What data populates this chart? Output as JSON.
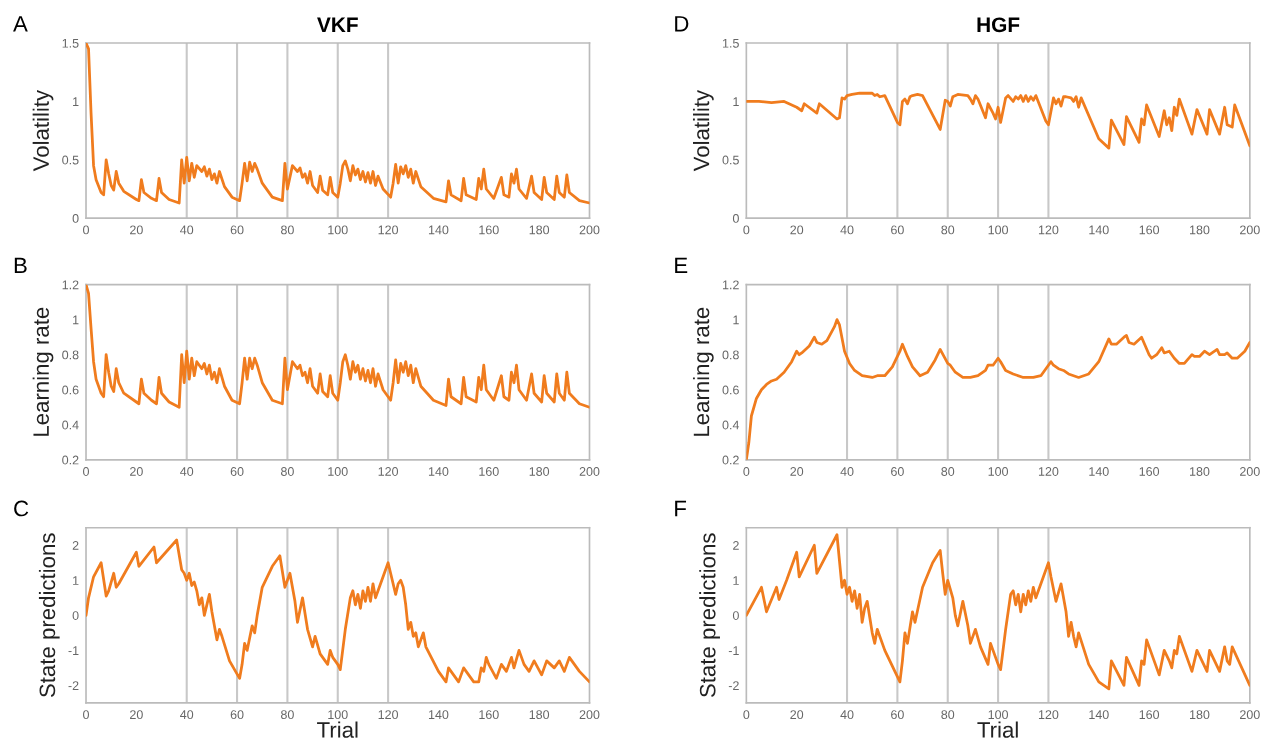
{
  "chart_data": [
    {
      "type": "line",
      "title": "VKF",
      "ylabel": "Volatility",
      "annotations": [
        "A"
      ],
      "xlim": [
        0,
        200
      ],
      "xticks": [
        0,
        20,
        40,
        60,
        80,
        100,
        120,
        140,
        160,
        180,
        200
      ],
      "ylim": [
        0,
        1.5
      ],
      "yticks": [
        0,
        0.5,
        1,
        1.5
      ],
      "ref_lines": [
        {
          "axis": "x",
          "value": 40,
          "color": "#c8c8c8"
        },
        {
          "axis": "x",
          "value": 60,
          "color": "#c8c8c8"
        },
        {
          "axis": "x",
          "value": 80,
          "color": "#c8c8c8"
        },
        {
          "axis": "x",
          "value": 100,
          "color": "#c8c8c8"
        },
        {
          "axis": "x",
          "value": 120,
          "color": "#c8c8c8"
        }
      ],
      "x": [
        0,
        1,
        2,
        3,
        4,
        6,
        7,
        8,
        9,
        10,
        11,
        12,
        13,
        15,
        20,
        21,
        22,
        23,
        26,
        28,
        29,
        30,
        33,
        37,
        38,
        39,
        40,
        41,
        42,
        43,
        44,
        46,
        47,
        48,
        49,
        50,
        51,
        52,
        53,
        55,
        58,
        61,
        62,
        63,
        64,
        65,
        66,
        67,
        68,
        70,
        74,
        78,
        79,
        80,
        82,
        84,
        85,
        86,
        87,
        88,
        89,
        90,
        92,
        93,
        94,
        96,
        97,
        98,
        100,
        101,
        102,
        103,
        104,
        105,
        106,
        107,
        108,
        109,
        110,
        111,
        112,
        113,
        114,
        115,
        116,
        118,
        121,
        122,
        123,
        124,
        125,
        126,
        127,
        128,
        129,
        130,
        131,
        133,
        138,
        143,
        144,
        145,
        149,
        150,
        151,
        155,
        156,
        157,
        158,
        159,
        162,
        165,
        166,
        168,
        169,
        170,
        171,
        172,
        175,
        177,
        178,
        181,
        182,
        183,
        186,
        187,
        188,
        190,
        191,
        192,
        196,
        200
      ],
      "series": [
        {
          "color": "#f07c1e",
          "values": [
            1.5,
            1.45,
            0.9,
            0.45,
            0.33,
            0.22,
            0.2,
            0.5,
            0.38,
            0.28,
            0.24,
            0.4,
            0.3,
            0.23,
            0.16,
            0.15,
            0.33,
            0.22,
            0.17,
            0.15,
            0.34,
            0.22,
            0.16,
            0.13,
            0.5,
            0.3,
            0.52,
            0.32,
            0.47,
            0.35,
            0.45,
            0.4,
            0.44,
            0.36,
            0.42,
            0.33,
            0.38,
            0.3,
            0.4,
            0.27,
            0.18,
            0.15,
            0.3,
            0.47,
            0.32,
            0.48,
            0.4,
            0.47,
            0.42,
            0.3,
            0.18,
            0.15,
            0.47,
            0.25,
            0.45,
            0.4,
            0.43,
            0.35,
            0.38,
            0.3,
            0.4,
            0.28,
            0.22,
            0.36,
            0.24,
            0.2,
            0.35,
            0.22,
            0.18,
            0.3,
            0.45,
            0.49,
            0.42,
            0.32,
            0.45,
            0.37,
            0.42,
            0.33,
            0.4,
            0.31,
            0.39,
            0.3,
            0.4,
            0.28,
            0.36,
            0.25,
            0.18,
            0.3,
            0.46,
            0.3,
            0.44,
            0.38,
            0.45,
            0.35,
            0.42,
            0.3,
            0.4,
            0.27,
            0.17,
            0.14,
            0.32,
            0.2,
            0.15,
            0.34,
            0.2,
            0.16,
            0.34,
            0.25,
            0.42,
            0.25,
            0.17,
            0.35,
            0.2,
            0.18,
            0.38,
            0.3,
            0.42,
            0.25,
            0.17,
            0.36,
            0.22,
            0.16,
            0.35,
            0.22,
            0.16,
            0.36,
            0.22,
            0.18,
            0.37,
            0.22,
            0.15,
            0.13
          ]
        }
      ]
    },
    {
      "type": "line",
      "title": "HGF",
      "ylabel": "Volatility",
      "annotations": [
        "D"
      ],
      "xlim": [
        0,
        200
      ],
      "xticks": [
        0,
        20,
        40,
        60,
        80,
        100,
        120,
        140,
        160,
        180,
        200
      ],
      "ylim": [
        0,
        1.5
      ],
      "yticks": [
        0,
        0.5,
        1,
        1.5
      ],
      "ref_lines": [
        {
          "axis": "x",
          "value": 40,
          "color": "#c8c8c8"
        },
        {
          "axis": "x",
          "value": 60,
          "color": "#c8c8c8"
        },
        {
          "axis": "x",
          "value": 80,
          "color": "#c8c8c8"
        },
        {
          "axis": "x",
          "value": 100,
          "color": "#c8c8c8"
        },
        {
          "axis": "x",
          "value": 120,
          "color": "#c8c8c8"
        }
      ],
      "x": [
        0,
        5,
        10,
        15,
        20,
        22,
        23,
        28,
        29,
        36,
        37,
        38,
        39,
        40,
        42,
        45,
        50,
        51,
        52,
        53,
        55,
        60,
        61,
        62,
        63,
        64,
        65,
        66,
        68,
        70,
        77,
        79,
        80,
        81,
        82,
        84,
        88,
        89,
        90,
        91,
        92,
        95,
        96,
        98,
        99,
        100,
        101,
        103,
        104,
        106,
        107,
        108,
        109,
        110,
        111,
        112,
        113,
        114,
        115,
        119,
        120,
        122,
        123,
        124,
        125,
        126,
        127,
        129,
        130,
        131,
        132,
        133,
        140,
        144,
        145,
        150,
        151,
        156,
        157,
        158,
        159,
        164,
        166,
        167,
        168,
        169,
        170,
        171,
        172,
        177,
        179,
        183,
        184,
        188,
        190,
        191,
        193,
        194,
        200
      ],
      "series": [
        {
          "color": "#f07c1e",
          "values": [
            1.0,
            1.0,
            0.99,
            1.0,
            0.95,
            0.92,
            0.98,
            0.9,
            0.98,
            0.85,
            0.86,
            1.03,
            1.02,
            1.05,
            1.06,
            1.07,
            1.07,
            1.05,
            1.06,
            1.04,
            1.05,
            0.82,
            0.8,
            1.0,
            1.02,
            0.98,
            1.04,
            1.05,
            1.06,
            1.05,
            0.76,
            1.01,
            1.0,
            0.96,
            1.04,
            1.06,
            1.05,
            1.02,
            0.98,
            1.05,
            1.02,
            0.86,
            0.98,
            0.9,
            0.85,
            0.95,
            0.82,
            1.03,
            1.05,
            1.0,
            1.04,
            1.02,
            1.05,
            1.0,
            1.05,
            1.0,
            1.04,
            1.01,
            1.05,
            0.83,
            0.8,
            1.03,
            0.98,
            1.02,
            0.96,
            1.04,
            1.04,
            1.03,
            1.0,
            1.04,
            0.95,
            1.03,
            0.68,
            0.6,
            0.84,
            0.63,
            0.87,
            0.65,
            0.85,
            0.8,
            0.97,
            0.7,
            0.92,
            0.8,
            0.86,
            0.75,
            0.95,
            0.88,
            1.02,
            0.72,
            0.93,
            0.72,
            0.93,
            0.72,
            0.95,
            0.8,
            0.78,
            0.97,
            0.62
          ]
        }
      ]
    },
    {
      "type": "line",
      "ylabel": "Learning rate",
      "annotations": [
        "B"
      ],
      "xlim": [
        0,
        200
      ],
      "xticks": [
        0,
        20,
        40,
        60,
        80,
        100,
        120,
        140,
        160,
        180,
        200
      ],
      "ylim": [
        0.2,
        1.2
      ],
      "yticks": [
        0.2,
        0.4,
        0.6,
        0.8,
        1,
        1.2
      ],
      "ref_lines": [
        {
          "axis": "x",
          "value": 40,
          "color": "#c8c8c8"
        },
        {
          "axis": "x",
          "value": 60,
          "color": "#c8c8c8"
        },
        {
          "axis": "x",
          "value": 80,
          "color": "#c8c8c8"
        },
        {
          "axis": "x",
          "value": 100,
          "color": "#c8c8c8"
        },
        {
          "axis": "x",
          "value": 120,
          "color": "#c8c8c8"
        }
      ],
      "x": [
        0,
        1,
        2,
        3,
        4,
        6,
        7,
        8,
        9,
        10,
        11,
        12,
        13,
        15,
        20,
        21,
        22,
        23,
        26,
        28,
        29,
        30,
        33,
        37,
        38,
        39,
        40,
        41,
        42,
        43,
        44,
        46,
        47,
        48,
        49,
        50,
        51,
        52,
        53,
        55,
        58,
        61,
        62,
        63,
        64,
        65,
        66,
        67,
        68,
        70,
        74,
        78,
        79,
        80,
        82,
        84,
        85,
        86,
        87,
        88,
        89,
        90,
        92,
        93,
        94,
        96,
        97,
        98,
        100,
        101,
        102,
        103,
        104,
        105,
        106,
        107,
        108,
        109,
        110,
        111,
        112,
        113,
        114,
        115,
        116,
        118,
        121,
        122,
        123,
        124,
        125,
        126,
        127,
        128,
        129,
        130,
        131,
        133,
        138,
        143,
        144,
        145,
        149,
        150,
        151,
        155,
        156,
        157,
        158,
        159,
        162,
        165,
        166,
        168,
        169,
        170,
        171,
        172,
        175,
        177,
        178,
        181,
        182,
        183,
        186,
        187,
        188,
        190,
        191,
        192,
        196,
        200
      ],
      "series": [
        {
          "color": "#f07c1e",
          "values": [
            1.2,
            1.15,
            0.95,
            0.76,
            0.66,
            0.58,
            0.56,
            0.8,
            0.7,
            0.62,
            0.59,
            0.72,
            0.64,
            0.58,
            0.53,
            0.52,
            0.66,
            0.58,
            0.54,
            0.52,
            0.67,
            0.58,
            0.53,
            0.5,
            0.8,
            0.64,
            0.82,
            0.66,
            0.78,
            0.68,
            0.76,
            0.72,
            0.75,
            0.69,
            0.74,
            0.66,
            0.7,
            0.64,
            0.72,
            0.62,
            0.54,
            0.52,
            0.64,
            0.78,
            0.66,
            0.78,
            0.72,
            0.78,
            0.74,
            0.64,
            0.54,
            0.52,
            0.78,
            0.6,
            0.76,
            0.72,
            0.74,
            0.68,
            0.7,
            0.64,
            0.72,
            0.62,
            0.58,
            0.69,
            0.59,
            0.56,
            0.68,
            0.58,
            0.54,
            0.64,
            0.76,
            0.8,
            0.74,
            0.66,
            0.76,
            0.7,
            0.74,
            0.66,
            0.72,
            0.65,
            0.71,
            0.64,
            0.72,
            0.62,
            0.69,
            0.6,
            0.54,
            0.64,
            0.77,
            0.64,
            0.75,
            0.7,
            0.76,
            0.68,
            0.74,
            0.64,
            0.72,
            0.62,
            0.54,
            0.51,
            0.66,
            0.56,
            0.52,
            0.67,
            0.56,
            0.53,
            0.67,
            0.6,
            0.74,
            0.6,
            0.54,
            0.68,
            0.56,
            0.54,
            0.7,
            0.64,
            0.74,
            0.6,
            0.54,
            0.69,
            0.58,
            0.53,
            0.68,
            0.58,
            0.53,
            0.69,
            0.58,
            0.54,
            0.7,
            0.58,
            0.52,
            0.5
          ]
        }
      ]
    },
    {
      "type": "line",
      "ylabel": "Learning rate",
      "annotations": [
        "E"
      ],
      "xlim": [
        0,
        200
      ],
      "xticks": [
        0,
        20,
        40,
        60,
        80,
        100,
        120,
        140,
        160,
        180,
        200
      ],
      "ylim": [
        0.2,
        1.2
      ],
      "yticks": [
        0.2,
        0.4,
        0.6,
        0.8,
        1,
        1.2
      ],
      "ref_lines": [
        {
          "axis": "x",
          "value": 40,
          "color": "#c8c8c8"
        },
        {
          "axis": "x",
          "value": 60,
          "color": "#c8c8c8"
        },
        {
          "axis": "x",
          "value": 80,
          "color": "#c8c8c8"
        },
        {
          "axis": "x",
          "value": 100,
          "color": "#c8c8c8"
        },
        {
          "axis": "x",
          "value": 120,
          "color": "#c8c8c8"
        }
      ],
      "x": [
        0,
        1,
        2,
        4,
        6,
        8,
        10,
        12,
        15,
        18,
        20,
        21,
        22,
        25,
        27,
        28,
        30,
        32,
        35,
        36,
        37,
        39,
        41,
        43,
        46,
        50,
        52,
        55,
        58,
        61,
        62,
        64,
        66,
        69,
        72,
        75,
        77,
        80,
        81,
        83,
        86,
        89,
        92,
        95,
        96,
        98,
        100,
        101,
        103,
        106,
        110,
        114,
        117,
        119,
        121,
        122,
        124,
        126,
        128,
        132,
        136,
        140,
        144,
        145,
        147,
        150,
        151,
        152,
        154,
        157,
        160,
        161,
        163,
        165,
        166,
        168,
        170,
        172,
        174,
        177,
        178,
        180,
        182,
        184,
        187,
        188,
        190,
        191,
        193,
        195,
        198,
        200
      ],
      "series": [
        {
          "color": "#f07c1e",
          "values": [
            0.2,
            0.3,
            0.45,
            0.55,
            0.6,
            0.63,
            0.65,
            0.66,
            0.7,
            0.76,
            0.82,
            0.8,
            0.81,
            0.85,
            0.9,
            0.87,
            0.86,
            0.88,
            0.96,
            1.0,
            0.97,
            0.82,
            0.75,
            0.71,
            0.68,
            0.67,
            0.68,
            0.68,
            0.73,
            0.82,
            0.86,
            0.79,
            0.73,
            0.68,
            0.7,
            0.77,
            0.83,
            0.75,
            0.74,
            0.7,
            0.67,
            0.67,
            0.68,
            0.71,
            0.74,
            0.74,
            0.78,
            0.76,
            0.71,
            0.69,
            0.67,
            0.67,
            0.68,
            0.72,
            0.76,
            0.74,
            0.72,
            0.71,
            0.69,
            0.67,
            0.69,
            0.76,
            0.89,
            0.86,
            0.86,
            0.9,
            0.91,
            0.87,
            0.86,
            0.9,
            0.8,
            0.78,
            0.8,
            0.84,
            0.81,
            0.82,
            0.78,
            0.75,
            0.75,
            0.8,
            0.79,
            0.79,
            0.82,
            0.8,
            0.83,
            0.8,
            0.8,
            0.81,
            0.78,
            0.78,
            0.82,
            0.87
          ]
        }
      ]
    },
    {
      "type": "line",
      "xlabel": "Trial",
      "ylabel": "State predictions",
      "annotations": [
        "C"
      ],
      "xlim": [
        0,
        200
      ],
      "xticks": [
        0,
        20,
        40,
        60,
        80,
        100,
        120,
        140,
        160,
        180,
        200
      ],
      "ylim": [
        -2.5,
        2.5
      ],
      "yticks": [
        -2,
        -1,
        0,
        1,
        2
      ],
      "ref_lines": [
        {
          "axis": "x",
          "value": 40,
          "color": "#c8c8c8"
        },
        {
          "axis": "x",
          "value": 60,
          "color": "#c8c8c8"
        },
        {
          "axis": "x",
          "value": 80,
          "color": "#c8c8c8"
        },
        {
          "axis": "x",
          "value": 100,
          "color": "#c8c8c8"
        },
        {
          "axis": "x",
          "value": 120,
          "color": "#c8c8c8"
        }
      ],
      "x": [
        0,
        1,
        3,
        6,
        8,
        9,
        11,
        12,
        13,
        20,
        21,
        27,
        28,
        36,
        38,
        39,
        40,
        41,
        42,
        43,
        44,
        45,
        46,
        47,
        48,
        49,
        50,
        52,
        53,
        54,
        57,
        61,
        62,
        63,
        64,
        66,
        67,
        68,
        70,
        74,
        77,
        79,
        80,
        81,
        83,
        84,
        86,
        88,
        90,
        91,
        93,
        96,
        97,
        98,
        100,
        101,
        103,
        105,
        106,
        107,
        108,
        109,
        110,
        111,
        112,
        113,
        114,
        115,
        118,
        120,
        121,
        123,
        124,
        125,
        126,
        127,
        128,
        129,
        130,
        131,
        132,
        134,
        135,
        140,
        143,
        144,
        148,
        150,
        154,
        156,
        157,
        158,
        159,
        160,
        163,
        165,
        167,
        169,
        170,
        172,
        174,
        176,
        178,
        181,
        183,
        186,
        188,
        190,
        192,
        196,
        200
      ],
      "series": [
        {
          "color": "#f07c1e",
          "values": [
            0,
            0.5,
            1.1,
            1.5,
            0.55,
            0.7,
            1.2,
            0.8,
            0.9,
            1.8,
            1.4,
            1.95,
            1.5,
            2.15,
            1.3,
            1.2,
            1.0,
            1.2,
            0.85,
            0.95,
            0.7,
            0.3,
            0.5,
            0,
            0.3,
            0.6,
            0.1,
            -0.7,
            -0.4,
            -0.6,
            -1.3,
            -1.8,
            -1.4,
            -0.8,
            -1.0,
            -0.3,
            -0.5,
            0,
            0.8,
            1.4,
            1.7,
            0.8,
            1.0,
            1.2,
            0.4,
            -0.2,
            0.5,
            -0.4,
            -0.9,
            -0.6,
            -1.1,
            -1.4,
            -1.0,
            -1.2,
            -1.4,
            -1.55,
            -0.4,
            0.5,
            0.7,
            0.3,
            0.6,
            0.2,
            0.7,
            0.4,
            0.8,
            0.4,
            0.9,
            0.5,
            1.1,
            1.5,
            1.2,
            0.6,
            0.9,
            1.0,
            0.8,
            0.3,
            -0.4,
            -0.2,
            -0.6,
            -0.5,
            -0.9,
            -0.5,
            -0.9,
            -1.6,
            -1.9,
            -1.5,
            -1.9,
            -1.5,
            -1.9,
            -1.9,
            -1.5,
            -1.6,
            -1.2,
            -1.4,
            -1.8,
            -1.4,
            -1.6,
            -1.2,
            -1.5,
            -1.0,
            -1.4,
            -1.6,
            -1.3,
            -1.7,
            -1.3,
            -1.5,
            -1.3,
            -1.6,
            -1.2,
            -1.6,
            -1.9
          ]
        }
      ]
    },
    {
      "type": "line",
      "xlabel": "Trial",
      "ylabel": "State predictions",
      "annotations": [
        "F"
      ],
      "xlim": [
        0,
        200
      ],
      "xticks": [
        0,
        20,
        40,
        60,
        80,
        100,
        120,
        140,
        160,
        180,
        200
      ],
      "ylim": [
        -2.5,
        2.5
      ],
      "yticks": [
        -2,
        -1,
        0,
        1,
        2
      ],
      "ref_lines": [
        {
          "axis": "x",
          "value": 40,
          "color": "#c8c8c8"
        },
        {
          "axis": "x",
          "value": 60,
          "color": "#c8c8c8"
        },
        {
          "axis": "x",
          "value": 80,
          "color": "#c8c8c8"
        },
        {
          "axis": "x",
          "value": 100,
          "color": "#c8c8c8"
        },
        {
          "axis": "x",
          "value": 120,
          "color": "#c8c8c8"
        }
      ],
      "x": [
        0,
        3,
        6,
        8,
        12,
        13,
        16,
        20,
        21,
        27,
        28,
        36,
        38,
        39,
        40,
        41,
        42,
        43,
        44,
        45,
        46,
        47,
        48,
        50,
        51,
        52,
        55,
        61,
        62,
        63,
        64,
        66,
        67,
        70,
        74,
        77,
        78,
        79,
        80,
        82,
        83,
        84,
        86,
        88,
        89,
        91,
        93,
        96,
        97,
        99,
        100,
        101,
        103,
        105,
        106,
        107,
        108,
        109,
        110,
        111,
        112,
        113,
        114,
        115,
        118,
        120,
        121,
        123,
        125,
        127,
        128,
        129,
        130,
        131,
        132,
        136,
        140,
        144,
        145,
        150,
        151,
        156,
        157,
        158,
        159,
        164,
        166,
        168,
        169,
        170,
        171,
        172,
        177,
        179,
        183,
        184,
        188,
        190,
        191,
        192,
        193,
        200
      ],
      "series": [
        {
          "color": "#f07c1e",
          "values": [
            0,
            0.4,
            0.8,
            0.1,
            0.8,
            0.45,
            1.0,
            1.8,
            1.1,
            2.0,
            1.2,
            2.3,
            0.8,
            1.0,
            0.6,
            0.8,
            0.4,
            0.7,
            0.2,
            0.6,
            -0.2,
            0.2,
            0.4,
            -0.5,
            -0.8,
            -0.4,
            -1.0,
            -1.9,
            -1.3,
            -0.5,
            -0.8,
            0.1,
            -0.2,
            0.8,
            1.5,
            1.85,
            1.2,
            0.6,
            1.0,
            0.5,
            0,
            -0.3,
            0.4,
            -0.3,
            -0.8,
            -0.4,
            -0.9,
            -1.4,
            -0.8,
            -1.2,
            -1.4,
            -1.55,
            -0.4,
            0.6,
            0.7,
            0.3,
            0.6,
            0.1,
            0.6,
            0.3,
            0.7,
            0.4,
            0.8,
            0.5,
            1.1,
            1.5,
            1.1,
            0.4,
            0.9,
            0.1,
            -0.6,
            -0.2,
            -0.6,
            -0.9,
            -0.5,
            -1.4,
            -1.9,
            -2.1,
            -1.3,
            -2.0,
            -1.2,
            -2.0,
            -1.3,
            -1.4,
            -0.7,
            -1.7,
            -1.0,
            -1.3,
            -1.5,
            -1.0,
            -1.1,
            -0.6,
            -1.6,
            -1.0,
            -1.6,
            -1.0,
            -1.6,
            -0.9,
            -1.3,
            -1.4,
            -0.9,
            -2.0
          ]
        }
      ]
    }
  ]
}
